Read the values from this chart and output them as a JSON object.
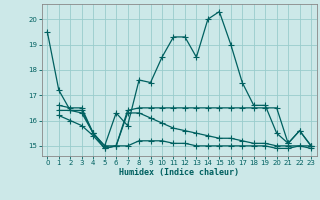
{
  "xlabel": "Humidex (Indice chaleur)",
  "bg_color": "#cce8e8",
  "grid_color": "#99cccc",
  "line_color": "#006060",
  "xlim": [
    -0.5,
    23.5
  ],
  "ylim": [
    14.6,
    20.6
  ],
  "yticks": [
    15,
    16,
    17,
    18,
    19,
    20
  ],
  "xticks": [
    0,
    1,
    2,
    3,
    4,
    5,
    6,
    7,
    8,
    9,
    10,
    11,
    12,
    13,
    14,
    15,
    16,
    17,
    18,
    19,
    20,
    21,
    22,
    23
  ],
  "line1_x": [
    0,
    1,
    2,
    3,
    4,
    5,
    6,
    7,
    8,
    9,
    10,
    11,
    12,
    13,
    14,
    15,
    16,
    17,
    18,
    19,
    20,
    21,
    22,
    23
  ],
  "line1_y": [
    19.5,
    17.2,
    16.4,
    16.4,
    15.5,
    15.0,
    16.3,
    15.8,
    17.6,
    17.5,
    18.5,
    19.3,
    19.3,
    18.5,
    20.0,
    20.3,
    19.0,
    17.5,
    16.6,
    16.6,
    15.5,
    15.1,
    15.6,
    15.0
  ],
  "line2_x": [
    1,
    2,
    3,
    4,
    5,
    6,
    7,
    8,
    9,
    10,
    11,
    12,
    13,
    14,
    15,
    16,
    17,
    18,
    19,
    20,
    21,
    22,
    23
  ],
  "line2_y": [
    16.6,
    16.5,
    16.5,
    15.5,
    15.0,
    15.0,
    16.4,
    16.5,
    16.5,
    16.5,
    16.5,
    16.5,
    16.5,
    16.5,
    16.5,
    16.5,
    16.5,
    16.5,
    16.5,
    16.5,
    15.1,
    15.6,
    15.0
  ],
  "line3_x": [
    1,
    2,
    3,
    4,
    5,
    6,
    7,
    8,
    9,
    10,
    11,
    12,
    13,
    14,
    15,
    16,
    17,
    18,
    19,
    20,
    21,
    22,
    23
  ],
  "line3_y": [
    16.4,
    16.4,
    16.3,
    15.5,
    14.9,
    15.0,
    16.3,
    16.3,
    16.1,
    15.9,
    15.7,
    15.6,
    15.5,
    15.4,
    15.3,
    15.3,
    15.2,
    15.1,
    15.1,
    15.0,
    15.0,
    15.0,
    15.0
  ],
  "line4_x": [
    1,
    2,
    3,
    4,
    5,
    6,
    7,
    8,
    9,
    10,
    11,
    12,
    13,
    14,
    15,
    16,
    17,
    18,
    19,
    20,
    21,
    22,
    23
  ],
  "line4_y": [
    16.2,
    16.0,
    15.8,
    15.4,
    14.9,
    15.0,
    15.0,
    15.2,
    15.2,
    15.2,
    15.1,
    15.1,
    15.0,
    15.0,
    15.0,
    15.0,
    15.0,
    15.0,
    15.0,
    14.9,
    14.9,
    15.0,
    14.9
  ]
}
